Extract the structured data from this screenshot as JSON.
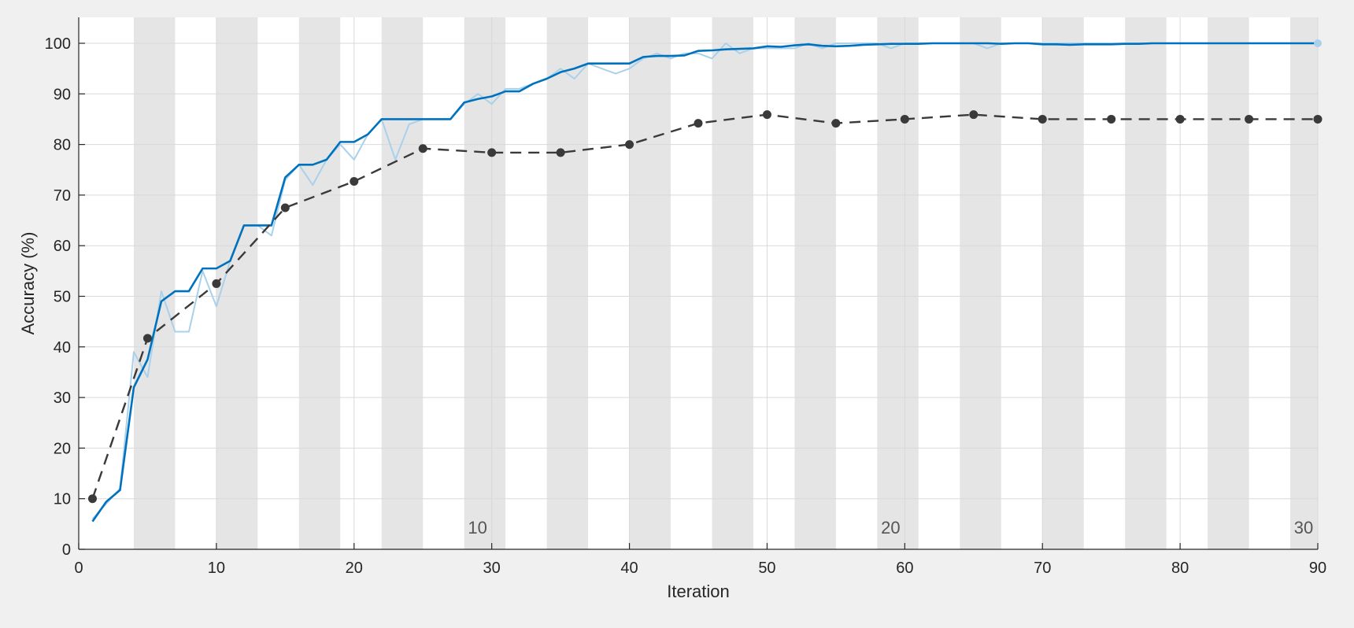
{
  "chart_data": {
    "type": "line",
    "title": "",
    "xlabel": "Iteration",
    "ylabel": "Accuracy (%)",
    "xlim": [
      0,
      90
    ],
    "ylim": [
      0,
      105
    ],
    "xticks": [
      0,
      10,
      20,
      30,
      40,
      50,
      60,
      70,
      80,
      90
    ],
    "yticks": [
      0,
      10,
      20,
      30,
      40,
      50,
      60,
      70,
      80,
      90,
      100
    ],
    "grid": true,
    "legend": "none",
    "iterations_per_epoch": 3,
    "epoch_labels": [
      "10",
      "20",
      "30"
    ],
    "colors": {
      "smoothed": "#0072BD",
      "raw": "#A9D1EC",
      "validation": "#3a3a3a",
      "band": "#e5e5e5",
      "background": "#f0f0f0"
    },
    "series": [
      {
        "role": "raw",
        "x": [
          1,
          2,
          3,
          4,
          5,
          6,
          7,
          8,
          9,
          10,
          11,
          12,
          13,
          14,
          15,
          16,
          17,
          18,
          19,
          20,
          21,
          22,
          23,
          24,
          25,
          26,
          27,
          28,
          29,
          30,
          31,
          32,
          33,
          34,
          35,
          36,
          37,
          38,
          39,
          40,
          41,
          42,
          43,
          44,
          45,
          46,
          47,
          48,
          49,
          50,
          51,
          52,
          53,
          54,
          55,
          56,
          57,
          58,
          59,
          60,
          61,
          62,
          63,
          64,
          65,
          66,
          67,
          68,
          69,
          70,
          71,
          72,
          73,
          74,
          75,
          76,
          77,
          78,
          79,
          80,
          81,
          82,
          83,
          84,
          85,
          86,
          87,
          88,
          89,
          90
        ],
        "y": [
          6,
          9,
          12,
          39,
          34,
          51,
          43,
          43,
          55,
          48,
          57,
          64,
          64,
          62,
          73,
          76,
          72,
          77,
          80,
          77,
          82,
          85,
          77,
          84,
          85,
          85,
          85,
          88,
          90,
          88,
          91,
          91,
          92,
          93,
          95,
          93,
          96,
          95,
          94,
          95,
          97,
          98,
          97,
          98,
          98,
          97,
          100,
          98,
          99,
          99,
          99,
          99,
          100,
          99,
          100,
          100,
          100,
          100,
          99,
          100,
          100,
          100,
          100,
          100,
          100,
          99,
          100,
          100,
          100,
          100,
          100,
          100,
          100,
          100,
          100,
          100,
          100,
          100,
          100,
          100,
          100,
          100,
          100,
          100,
          100,
          100,
          100,
          100,
          100,
          100
        ]
      },
      {
        "role": "smoothed",
        "x": [
          1,
          2,
          3,
          4,
          5,
          6,
          7,
          8,
          9,
          10,
          11,
          12,
          13,
          14,
          15,
          16,
          17,
          18,
          19,
          20,
          21,
          22,
          23,
          24,
          25,
          26,
          27,
          28,
          29,
          30,
          31,
          32,
          33,
          34,
          35,
          36,
          37,
          38,
          39,
          40,
          41,
          42,
          43,
          44,
          45,
          46,
          47,
          48,
          49,
          50,
          51,
          52,
          53,
          54,
          55,
          56,
          57,
          58,
          59,
          60,
          61,
          62,
          63,
          64,
          65,
          66,
          67,
          68,
          69,
          70,
          71,
          72,
          73,
          74,
          75,
          76,
          77,
          78,
          79,
          80,
          81,
          82,
          83,
          84,
          85,
          86,
          87,
          88,
          89,
          90
        ],
        "y": [
          5.5,
          9.4,
          11.7,
          32,
          37.5,
          49,
          51,
          51,
          55.5,
          55.5,
          57,
          64,
          64,
          64,
          73.5,
          76,
          76,
          77,
          80.5,
          80.5,
          82,
          85,
          85,
          85,
          85,
          85,
          85,
          88.3,
          89,
          89.5,
          90.5,
          90.5,
          92,
          93,
          94.3,
          95,
          96,
          96,
          96,
          96,
          97.3,
          97.5,
          97.5,
          97.6,
          98.5,
          98.6,
          98.8,
          98.9,
          99,
          99.4,
          99.3,
          99.6,
          99.8,
          99.5,
          99.4,
          99.5,
          99.7,
          99.8,
          99.9,
          99.9,
          99.9,
          100,
          100,
          100,
          100,
          100,
          99.9,
          100,
          100,
          99.8,
          99.8,
          99.7,
          99.8,
          99.8,
          99.8,
          99.9,
          99.9,
          100,
          100,
          100,
          100,
          100,
          100,
          100,
          100,
          100,
          100,
          100,
          100,
          100
        ]
      },
      {
        "role": "validation",
        "x": [
          1,
          5,
          10,
          15,
          20,
          25,
          30,
          35,
          40,
          45,
          50,
          55,
          60,
          65,
          70,
          75,
          80,
          85,
          90
        ],
        "y": [
          10,
          41.7,
          52.5,
          67.5,
          72.7,
          79.2,
          78.4,
          78.4,
          80,
          84.2,
          85.9,
          84.2,
          85,
          85.9,
          85,
          85,
          85,
          85,
          85
        ]
      }
    ]
  }
}
